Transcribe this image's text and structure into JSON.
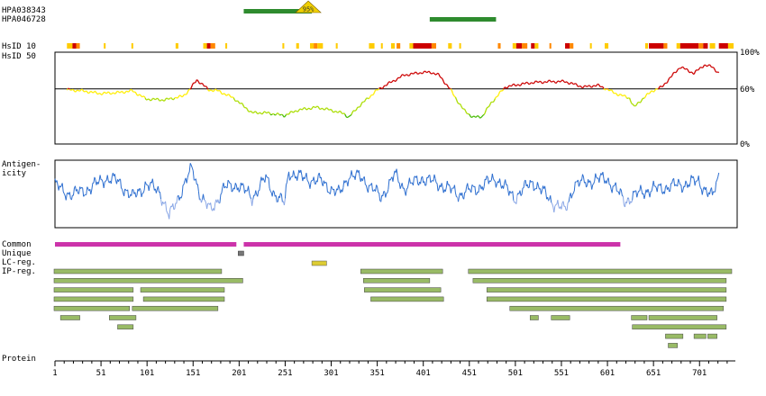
{
  "antibodies": [
    {
      "name": "HPA038343",
      "start": 206,
      "end": 280,
      "color": "#2e8b2e",
      "score_label": "95%",
      "marker_color": "#f0d000"
    },
    {
      "name": "HPA046728",
      "start": 408,
      "end": 480,
      "color": "#2e8b2e"
    }
  ],
  "row_labels": {
    "hsid10": "HsID 10",
    "hsid50": "HsID 50",
    "antigen_line1": "Antigen-",
    "antigen_line2": "icity",
    "common": "Common",
    "unique": "Unique",
    "lc_reg": "LC-reg.",
    "ip_reg": "IP-reg.",
    "protein": "Protein"
  },
  "chart_data": [
    {
      "type": "heatmap",
      "name": "HsID 10",
      "colors": {
        "high": "#cc0000",
        "mid": "#ff8800",
        "low": "#ffcc00"
      },
      "segments": [
        [
          14,
          20,
          "low"
        ],
        [
          20,
          24,
          "high"
        ],
        [
          24,
          28,
          "mid"
        ],
        [
          54,
          56,
          "low"
        ],
        [
          84,
          86,
          "low"
        ],
        [
          132,
          135,
          "low"
        ],
        [
          162,
          166,
          "low"
        ],
        [
          166,
          170,
          "high"
        ],
        [
          170,
          175,
          "mid"
        ],
        [
          186,
          188,
          "low"
        ],
        [
          248,
          250,
          "low"
        ],
        [
          263,
          266,
          "low"
        ],
        [
          278,
          282,
          "low"
        ],
        [
          282,
          286,
          "mid"
        ],
        [
          286,
          292,
          "low"
        ],
        [
          306,
          308,
          "low"
        ],
        [
          342,
          348,
          "low"
        ],
        [
          355,
          357,
          "low"
        ],
        [
          366,
          370,
          "low"
        ],
        [
          372,
          376,
          "mid"
        ],
        [
          386,
          390,
          "low"
        ],
        [
          390,
          410,
          "high"
        ],
        [
          410,
          415,
          "mid"
        ],
        [
          428,
          432,
          "low"
        ],
        [
          440,
          442,
          "low"
        ],
        [
          482,
          485,
          "mid"
        ],
        [
          498,
          502,
          "low"
        ],
        [
          502,
          508,
          "high"
        ],
        [
          508,
          514,
          "mid"
        ],
        [
          518,
          522,
          "high"
        ],
        [
          522,
          526,
          "low"
        ],
        [
          538,
          540,
          "mid"
        ],
        [
          555,
          560,
          "high"
        ],
        [
          560,
          564,
          "mid"
        ],
        [
          582,
          584,
          "low"
        ],
        [
          598,
          602,
          "low"
        ],
        [
          642,
          645,
          "low"
        ],
        [
          646,
          662,
          "high"
        ],
        [
          662,
          666,
          "mid"
        ],
        [
          676,
          680,
          "low"
        ],
        [
          680,
          700,
          "high"
        ],
        [
          700,
          705,
          "mid"
        ],
        [
          705,
          710,
          "high"
        ],
        [
          712,
          718,
          "low"
        ],
        [
          722,
          732,
          "high"
        ],
        [
          732,
          738,
          "low"
        ]
      ]
    },
    {
      "type": "line",
      "name": "HsID 50",
      "x": [
        1,
        30,
        50,
        70,
        85,
        100,
        120,
        140,
        148,
        155,
        168,
        178,
        195,
        215,
        230,
        250,
        265,
        285,
        300,
        315,
        320,
        330,
        350,
        360,
        380,
        400,
        410,
        418,
        430,
        440,
        445,
        455,
        465,
        475,
        490,
        500,
        520,
        540,
        555,
        565,
        575,
        590,
        600,
        610,
        625,
        630,
        640,
        650,
        660,
        680,
        695,
        706,
        715,
        722
      ],
      "y": [
        60,
        58,
        55,
        56,
        58,
        49,
        48,
        52,
        60,
        70,
        59,
        58,
        50,
        34,
        34,
        31,
        37,
        40,
        37,
        33,
        29,
        40,
        58,
        64,
        75,
        78,
        78,
        75,
        60,
        44,
        37,
        29,
        30,
        45,
        62,
        64,
        67,
        68,
        68,
        65,
        62,
        64,
        60,
        55,
        50,
        40,
        50,
        58,
        62,
        84,
        77,
        86,
        84,
        77
      ],
      "ylim": [
        0,
        100
      ],
      "ytick_labels": [
        "100%",
        "60%",
        "0%"
      ],
      "threshold": 60,
      "colors": {
        "high": "#cc0000",
        "mid": "#aadd00",
        "low": "#ffee00",
        "lowest": "#44bb00"
      }
    },
    {
      "type": "line",
      "name": "Antigenicity",
      "x": [
        1,
        10,
        20,
        40,
        55,
        70,
        85,
        100,
        115,
        125,
        138,
        150,
        160,
        170,
        185,
        200,
        215,
        230,
        240,
        250,
        255,
        270,
        290,
        310,
        320,
        335,
        355,
        370,
        380,
        400,
        420,
        440,
        460,
        480,
        500,
        520,
        540,
        555,
        565,
        580,
        600,
        620,
        640,
        660,
        680,
        700,
        715,
        722
      ],
      "y": [
        0.6,
        0.4,
        0.3,
        0.5,
        0.8,
        0.7,
        0.2,
        0.6,
        0.4,
        -0.4,
        0.4,
        1.1,
        0.2,
        -0.2,
        0.5,
        0.6,
        0.2,
        0.8,
        0.3,
        0.0,
        1.0,
        0.8,
        0.7,
        0.3,
        0.9,
        0.8,
        0.2,
        0.9,
        0.5,
        0.8,
        0.6,
        0.3,
        0.5,
        0.8,
        0.2,
        0.7,
        0.1,
        -0.2,
        0.6,
        0.7,
        0.8,
        0.1,
        0.4,
        0.5,
        0.6,
        0.7,
        0.2,
        0.9
      ],
      "colors": {
        "line": "#2e6fd0",
        "low": "#8aa7e6"
      }
    },
    {
      "type": "bar",
      "name": "Common",
      "color": "#cc33aa",
      "intervals": [
        [
          1,
          198
        ],
        [
          206,
          615
        ]
      ]
    },
    {
      "type": "bar",
      "name": "Unique",
      "color": "#777777",
      "intervals": [
        [
          200,
          206
        ]
      ]
    },
    {
      "type": "bar",
      "name": "LC-reg.",
      "color": "#ddcc33",
      "intervals": [
        [
          280,
          296
        ]
      ]
    },
    {
      "type": "bar",
      "name": "IP-reg.",
      "color": "#99bb66",
      "rows": [
        [
          [
            0,
            182
          ],
          [
            333,
            422
          ],
          [
            450,
            736
          ]
        ],
        [
          [
            0,
            205
          ],
          [
            336,
            408
          ],
          [
            455,
            730
          ]
        ],
        [
          [
            0,
            86
          ],
          [
            94,
            185
          ],
          [
            337,
            420
          ],
          [
            470,
            730
          ]
        ],
        [
          [
            0,
            86
          ],
          [
            97,
            185
          ],
          [
            344,
            423
          ],
          [
            470,
            730
          ]
        ],
        [
          [
            0,
            82
          ],
          [
            85,
            178
          ],
          [
            495,
            727
          ]
        ],
        [
          [
            7,
            28
          ],
          [
            60,
            89
          ],
          [
            517,
            526
          ],
          [
            540,
            560
          ],
          [
            627,
            644
          ],
          [
            646,
            720
          ]
        ],
        [
          [
            69,
            86
          ],
          [
            628,
            730
          ]
        ],
        [
          [
            664,
            683
          ],
          [
            695,
            708
          ],
          [
            710,
            720
          ]
        ],
        [
          [
            667,
            677
          ]
        ]
      ]
    },
    {
      "type": "table",
      "name": "Protein",
      "xlim": [
        1,
        736
      ],
      "tick_labels": [
        "1",
        "51",
        "101",
        "151",
        "201",
        "251",
        "301",
        "351",
        "401",
        "451",
        "501",
        "551",
        "601",
        "651",
        "701"
      ]
    }
  ]
}
